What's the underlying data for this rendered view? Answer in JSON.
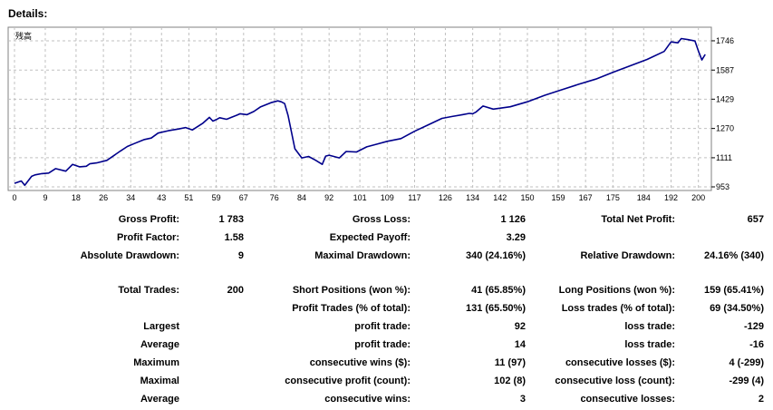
{
  "section_title": "Details:",
  "chart_data": {
    "type": "line",
    "label": "残高",
    "line_color": "#00008b",
    "grid": true,
    "xlim": [
      0,
      203
    ],
    "ylim": [
      953,
      1800
    ],
    "x_ticks": [
      "0",
      "9",
      "18",
      "26",
      "34",
      "43",
      "51",
      "59",
      "67",
      "76",
      "84",
      "92",
      "101",
      "109",
      "117",
      "126",
      "134",
      "142",
      "150",
      "159",
      "167",
      "175",
      "184",
      "192",
      "200"
    ],
    "y_ticks": [
      "1746",
      "1587",
      "1429",
      "1270",
      "1111",
      "953"
    ],
    "series": [
      {
        "x": [
          0,
          2,
          3,
          5,
          6,
          8,
          10,
          12,
          15,
          17,
          19,
          21,
          22,
          24,
          27,
          29,
          31,
          33,
          35,
          38,
          40,
          42,
          45,
          48,
          50,
          52,
          55,
          57,
          58,
          59,
          60,
          62,
          65,
          66,
          68,
          70,
          72,
          75,
          77,
          78,
          79,
          80,
          82,
          84,
          86,
          88,
          90,
          91,
          92,
          95,
          97,
          100,
          103,
          106,
          109,
          113,
          117,
          121,
          125,
          128,
          131,
          133,
          134,
          135,
          137,
          140,
          145,
          150,
          155,
          160,
          165,
          170,
          175,
          180,
          185,
          190,
          192,
          194,
          195,
          197,
          199,
          200,
          201,
          202
        ],
        "y": [
          972,
          985,
          962,
          1010,
          1018,
          1025,
          1028,
          1052,
          1038,
          1075,
          1062,
          1065,
          1078,
          1083,
          1097,
          1122,
          1148,
          1172,
          1188,
          1210,
          1218,
          1245,
          1258,
          1267,
          1275,
          1262,
          1297,
          1330,
          1310,
          1318,
          1328,
          1320,
          1342,
          1350,
          1345,
          1362,
          1388,
          1410,
          1420,
          1415,
          1405,
          1340,
          1160,
          1110,
          1118,
          1098,
          1075,
          1120,
          1125,
          1110,
          1145,
          1142,
          1170,
          1185,
          1200,
          1215,
          1255,
          1290,
          1325,
          1335,
          1345,
          1352,
          1350,
          1360,
          1392,
          1375,
          1388,
          1415,
          1450,
          1480,
          1510,
          1538,
          1575,
          1610,
          1645,
          1688,
          1740,
          1735,
          1758,
          1752,
          1745,
          1690,
          1642,
          1672
        ]
      }
    ]
  },
  "stats": {
    "r1": {
      "l1": "Gross Profit:",
      "v1": "1 783",
      "l2": "Gross Loss:",
      "v2": "1 126",
      "l3": "Total Net Profit:",
      "v3": "657"
    },
    "r2": {
      "l1": "Profit Factor:",
      "v1": "1.58",
      "l2": "Expected Payoff:",
      "v2": "3.29",
      "l3": "",
      "v3": ""
    },
    "r3": {
      "l1": "Absolute Drawdown:",
      "v1": "9",
      "l2": "Maximal Drawdown:",
      "v2": "340 (24.16%)",
      "l3": "Relative Drawdown:",
      "v3": "24.16% (340)"
    },
    "r4": {
      "l1": "Total Trades:",
      "v1": "200",
      "l2": "Short Positions (won %):",
      "v2": "41 (65.85%)",
      "l3": "Long Positions (won %):",
      "v3": "159 (65.41%)"
    },
    "r5": {
      "l1": "",
      "v1": "",
      "l2": "Profit Trades (% of total):",
      "v2": "131 (65.50%)",
      "l3": "Loss trades (% of total):",
      "v3": "69 (34.50%)"
    },
    "r6": {
      "l1": "Largest",
      "v1": "",
      "l2": "profit trade:",
      "v2": "92",
      "l3": "loss trade:",
      "v3": "-129"
    },
    "r7": {
      "l1": "Average",
      "v1": "",
      "l2": "profit trade:",
      "v2": "14",
      "l3": "loss trade:",
      "v3": "-16"
    },
    "r8": {
      "l1": "Maximum",
      "v1": "",
      "l2": "consecutive wins ($):",
      "v2": "11 (97)",
      "l3": "consecutive losses ($):",
      "v3": "4 (-299)"
    },
    "r9": {
      "l1": "Maximal",
      "v1": "",
      "l2": "consecutive profit (count):",
      "v2": "102 (8)",
      "l3": "consecutive loss (count):",
      "v3": "-299 (4)"
    },
    "r10": {
      "l1": "Average",
      "v1": "",
      "l2": "consecutive wins:",
      "v2": "3",
      "l3": "consecutive losses:",
      "v3": "2"
    }
  }
}
